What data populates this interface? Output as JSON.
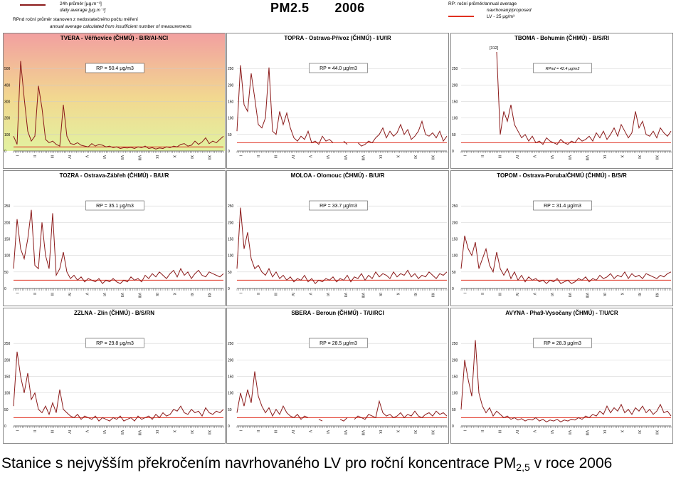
{
  "title": {
    "pollutant": "PM2.5",
    "year": "2006"
  },
  "legend_left": {
    "daily_cz": "24h průměr [µg.m⁻³]",
    "daily_en": "daily average [µg.m⁻³]",
    "rpnd_cz": "RPnd   roční průměr stanoven z nedostatečného počtu měření",
    "rpnd_en": "annual average calculated from insufficient number of measurements"
  },
  "legend_right": {
    "rp": "RP: roční průměr/annual average",
    "proposed": "navrhovaný/proposed",
    "lv": "LV - 25 µg/m³"
  },
  "caption": {
    "text": "Stanice s nejvyšším překročením navrhovaného LV pro roční koncentrace PM",
    "sub": "2,5",
    "tail": " v roce 2006"
  },
  "colors": {
    "series": "#8b1a1a",
    "limit": "#e03020"
  },
  "chart_data": [
    {
      "type": "line",
      "title": "TVERA - Věřňovice (ČHMÚ) - B/R/AI-NCI",
      "annotation": "RP = 50.4 µg/m3",
      "limit": 25,
      "ylim": [
        0,
        600
      ],
      "yticks": [
        0,
        100,
        200,
        300,
        400,
        500
      ],
      "months": [
        "I",
        "II",
        "III",
        "IV",
        "V",
        "VI",
        "VII",
        "VIII",
        "IX",
        "X",
        "XI",
        "XII"
      ],
      "background": "gradient",
      "y": [
        90,
        40,
        545,
        320,
        120,
        60,
        90,
        395,
        260,
        70,
        50,
        60,
        40,
        30,
        280,
        90,
        45,
        40,
        50,
        35,
        30,
        25,
        45,
        30,
        40,
        35,
        25,
        30,
        20,
        25,
        15,
        20,
        18,
        22,
        15,
        25,
        20,
        30,
        15,
        20,
        12,
        18,
        15,
        25,
        20,
        30,
        25,
        40,
        45,
        30,
        35,
        60,
        40,
        55,
        80,
        45,
        60,
        50,
        70,
        90
      ]
    },
    {
      "type": "line",
      "title": "TOPRA - Ostrava-Přívoz (ČHMÚ) - I/U/IR",
      "annotation": "RP = 44.0 µg/m3",
      "limit": 25,
      "ylim": [
        0,
        300
      ],
      "yticks": [
        0,
        50,
        100,
        150,
        200,
        250
      ],
      "months": [
        "I",
        "II",
        "III",
        "IV",
        "V",
        "VI",
        "VII",
        "VIII",
        "IX",
        "X",
        "XI",
        "XII"
      ],
      "y": [
        60,
        260,
        140,
        120,
        235,
        160,
        80,
        70,
        100,
        253,
        60,
        50,
        120,
        80,
        115,
        70,
        40,
        30,
        45,
        35,
        60,
        25,
        30,
        20,
        45,
        30,
        35,
        25,
        null,
        null,
        30,
        20,
        null,
        null,
        25,
        15,
        20,
        30,
        25,
        40,
        50,
        70,
        40,
        60,
        45,
        55,
        80,
        50,
        65,
        35,
        45,
        60,
        90,
        50,
        45,
        55,
        40,
        60,
        30,
        45
      ]
    },
    {
      "type": "line",
      "title": "TBOMA - Bohumín (ČHMÚ) - B/S/RI",
      "annotation": "RPnd = 42.4 µg/m3",
      "peak_label": "[312]",
      "limit": 25,
      "ylim": [
        0,
        300
      ],
      "yticks": [
        0,
        50,
        100,
        150,
        200,
        250
      ],
      "months": [
        "I",
        "II",
        "III",
        "IV",
        "V",
        "VI",
        "VII",
        "VIII",
        "IX",
        "X",
        "XI",
        "XII"
      ],
      "y": [
        null,
        null,
        null,
        null,
        null,
        null,
        null,
        null,
        null,
        null,
        312,
        50,
        120,
        90,
        140,
        80,
        60,
        40,
        50,
        30,
        45,
        25,
        30,
        20,
        40,
        30,
        25,
        20,
        35,
        25,
        20,
        30,
        25,
        40,
        30,
        35,
        45,
        30,
        55,
        40,
        60,
        35,
        50,
        70,
        45,
        80,
        60,
        40,
        55,
        120,
        70,
        90,
        50,
        45,
        60,
        40,
        70,
        55,
        45,
        60
      ]
    },
    {
      "type": "line",
      "title": "TOZRA - Ostrava-Zábřeh (ČHMÚ) - B/U/R",
      "annotation": "RP = 35.1 µg/m3",
      "limit": 25,
      "ylim": [
        0,
        300
      ],
      "yticks": [
        0,
        50,
        100,
        150,
        200,
        250
      ],
      "months": [
        "I",
        "II",
        "III",
        "IV",
        "V",
        "VI",
        "VII",
        "VIII",
        "IX",
        "X",
        "XI",
        "XII"
      ],
      "y": [
        60,
        210,
        120,
        90,
        150,
        238,
        70,
        60,
        200,
        100,
        60,
        228,
        40,
        60,
        110,
        50,
        30,
        40,
        25,
        35,
        20,
        30,
        25,
        20,
        30,
        15,
        25,
        20,
        30,
        20,
        15,
        25,
        20,
        35,
        25,
        30,
        20,
        40,
        30,
        45,
        35,
        50,
        40,
        30,
        45,
        55,
        35,
        60,
        40,
        50,
        30,
        45,
        55,
        40,
        35,
        50,
        45,
        40,
        35,
        45
      ]
    },
    {
      "type": "line",
      "title": "MOLOA - Olomouc (ČHMÚ) - B/U/R",
      "annotation": "RP = 33.7 µg/m3",
      "limit": 25,
      "ylim": [
        0,
        300
      ],
      "yticks": [
        0,
        50,
        100,
        150,
        200,
        250
      ],
      "months": [
        "I",
        "II",
        "III",
        "IV",
        "V",
        "VI",
        "VII",
        "VIII",
        "IX",
        "X",
        "XI",
        "XII"
      ],
      "y": [
        60,
        245,
        120,
        170,
        90,
        60,
        70,
        50,
        40,
        60,
        35,
        50,
        30,
        40,
        25,
        35,
        20,
        30,
        25,
        40,
        20,
        30,
        15,
        25,
        20,
        30,
        25,
        35,
        20,
        30,
        25,
        40,
        20,
        35,
        30,
        45,
        25,
        40,
        30,
        50,
        35,
        45,
        40,
        30,
        50,
        35,
        45,
        40,
        55,
        35,
        45,
        30,
        40,
        35,
        50,
        40,
        30,
        45,
        40,
        50
      ]
    },
    {
      "type": "line",
      "title": "TOPOM - Ostrava-Poruba/ČHMÚ (ČHMÚ) - B/S/R",
      "annotation": "RP = 31.4 µg/m3",
      "limit": 25,
      "ylim": [
        0,
        300
      ],
      "yticks": [
        0,
        50,
        100,
        150,
        200,
        250
      ],
      "months": [
        "I",
        "II",
        "III",
        "IV",
        "V",
        "VI",
        "VII",
        "VIII",
        "IX",
        "X",
        "XI",
        "XII"
      ],
      "y": [
        60,
        160,
        120,
        100,
        140,
        60,
        90,
        120,
        70,
        50,
        110,
        60,
        40,
        60,
        30,
        50,
        25,
        40,
        20,
        35,
        25,
        30,
        20,
        25,
        15,
        25,
        20,
        30,
        15,
        20,
        25,
        15,
        20,
        30,
        25,
        35,
        20,
        30,
        25,
        40,
        30,
        35,
        45,
        30,
        40,
        35,
        50,
        30,
        45,
        35,
        40,
        30,
        45,
        40,
        35,
        30,
        40,
        35,
        45,
        50
      ]
    },
    {
      "type": "line",
      "title": "ZZLNA - Zlín (ČHMÚ) - B/S/RN",
      "annotation": "RP = 29.8 µg/m3",
      "limit": 25,
      "ylim": [
        0,
        300
      ],
      "yticks": [
        0,
        50,
        100,
        150,
        200,
        250
      ],
      "months": [
        "I",
        "II",
        "III",
        "IV",
        "V",
        "VI",
        "VII",
        "VIII",
        "IX",
        "X",
        "XI",
        "XII"
      ],
      "y": [
        60,
        225,
        150,
        100,
        160,
        80,
        100,
        50,
        40,
        60,
        35,
        70,
        40,
        110,
        50,
        40,
        30,
        25,
        35,
        20,
        30,
        25,
        20,
        30,
        15,
        25,
        20,
        15,
        25,
        20,
        30,
        15,
        20,
        25,
        15,
        30,
        20,
        25,
        30,
        20,
        35,
        25,
        40,
        30,
        35,
        50,
        45,
        60,
        40,
        35,
        50,
        40,
        45,
        30,
        55,
        40,
        35,
        45,
        40,
        50
      ]
    },
    {
      "type": "line",
      "title": "SBERA - Beroun (ČHMÚ) - T/U/RCI",
      "annotation": "RP = 28.5 µg/m3",
      "limit": 25,
      "ylim": [
        0,
        300
      ],
      "yticks": [
        0,
        50,
        100,
        150,
        200,
        250
      ],
      "months": [
        "I",
        "II",
        "III",
        "IV",
        "V",
        "VI",
        "VII",
        "VIII",
        "IX",
        "X",
        "XI",
        "XII"
      ],
      "y": [
        40,
        100,
        60,
        110,
        70,
        165,
        90,
        60,
        40,
        55,
        30,
        50,
        35,
        60,
        40,
        30,
        25,
        35,
        20,
        30,
        25,
        null,
        null,
        20,
        15,
        null,
        25,
        null,
        null,
        20,
        15,
        25,
        null,
        20,
        30,
        25,
        20,
        35,
        30,
        25,
        75,
        40,
        30,
        35,
        25,
        30,
        40,
        25,
        35,
        30,
        45,
        30,
        25,
        35,
        40,
        30,
        45,
        35,
        40,
        30
      ]
    },
    {
      "type": "line",
      "title": "AVYNA - Pha9-Vysočany (ČHMÚ) - T/U/CR",
      "annotation": "RP = 28.3 µg/m3",
      "limit": 25,
      "ylim": [
        0,
        300
      ],
      "yticks": [
        0,
        50,
        100,
        150,
        200,
        250
      ],
      "months": [
        "I",
        "II",
        "III",
        "IV",
        "V",
        "VI",
        "VII",
        "VIII",
        "IX",
        "X",
        "XI",
        "XII"
      ],
      "y": [
        50,
        200,
        140,
        90,
        260,
        100,
        60,
        40,
        55,
        30,
        45,
        35,
        25,
        30,
        20,
        25,
        18,
        22,
        15,
        20,
        18,
        25,
        15,
        20,
        12,
        18,
        15,
        20,
        12,
        18,
        15,
        20,
        18,
        25,
        20,
        30,
        25,
        35,
        30,
        45,
        35,
        60,
        40,
        55,
        45,
        65,
        40,
        50,
        35,
        55,
        45,
        60,
        40,
        50,
        35,
        45,
        65,
        40,
        45,
        30
      ]
    }
  ]
}
